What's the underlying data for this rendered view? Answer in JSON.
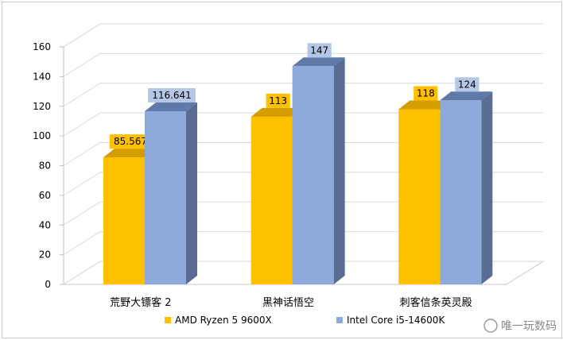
{
  "chart_data": {
    "type": "bar",
    "title": "",
    "xlabel": "",
    "ylabel": "",
    "categories": [
      "荒野大镖客 2",
      "黑神话悟空",
      "刺客信条英灵殿"
    ],
    "series": [
      {
        "name": "AMD Ryzen 5 9600X",
        "values": [
          85.567,
          113,
          118
        ],
        "labels": [
          "85.567",
          "113",
          "118"
        ]
      },
      {
        "name": "Intel Core i5-14600K",
        "values": [
          116.641,
          147,
          124
        ],
        "labels": [
          "116.641",
          "147",
          "124"
        ]
      }
    ],
    "ylim": [
      0,
      160
    ],
    "yticks": [
      0,
      20,
      40,
      60,
      80,
      100,
      120,
      140,
      160
    ],
    "grid": true,
    "legend_position": "bottom",
    "style": "3d-column",
    "colors": {
      "amd": "#ffc000",
      "amd_top": "#d49d00",
      "intel": "#8eaadb",
      "intel_top": "#5f79a8",
      "intel_side": "#5b6c92",
      "amd_label_bg": "#ffc000",
      "intel_label_bg": "#b4c7e7"
    }
  },
  "watermark": "唯一玩数码"
}
